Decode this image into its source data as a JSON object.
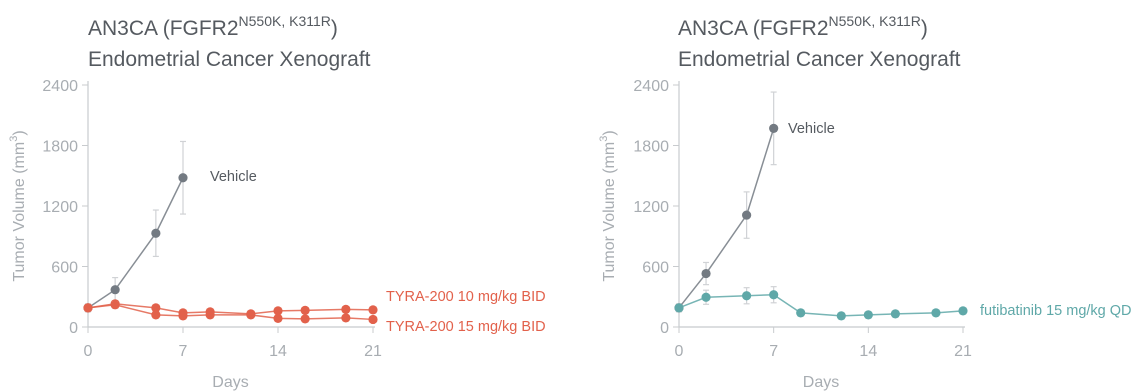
{
  "chart_data": [
    {
      "type": "line",
      "title": "AN3CA (FGFR2",
      "title_sup": "N550K, K311R",
      "title_close": ")",
      "subtitle": "Endometrial Cancer Xenograft",
      "ylabel": "Tumor Volume (mm",
      "ylabel_sup": "3",
      "ylabel_close": ")",
      "xlabel": "Days",
      "xlim": [
        0,
        21
      ],
      "ylim": [
        0,
        2400
      ],
      "xticks": [
        "0",
        "7",
        "14",
        "21"
      ],
      "yticks": [
        "0",
        "600",
        "1200",
        "1800",
        "2400"
      ],
      "grid": false,
      "series": [
        {
          "name": "Vehicle",
          "color": "#737a82",
          "x": [
            0,
            2,
            5,
            7
          ],
          "y": [
            190,
            370,
            930,
            1480
          ],
          "err": [
            40,
            120,
            230,
            360
          ]
        },
        {
          "name": "TYRA-200  10 mg/kg BID",
          "color": "#e2614b",
          "x": [
            0,
            2,
            5,
            7,
            9,
            12,
            14,
            16,
            19,
            21
          ],
          "y": [
            190,
            230,
            190,
            140,
            150,
            130,
            160,
            165,
            175,
            170
          ],
          "err": [
            20,
            30,
            25,
            20,
            20,
            20,
            25,
            25,
            25,
            25
          ]
        },
        {
          "name": "TYRA-200  15 mg/kg BID",
          "color": "#e2614b",
          "x": [
            0,
            2,
            5,
            7,
            9,
            12,
            14,
            16,
            19,
            21
          ],
          "y": [
            190,
            220,
            120,
            110,
            120,
            120,
            85,
            80,
            90,
            75
          ],
          "err": [
            20,
            30,
            20,
            15,
            15,
            15,
            15,
            15,
            15,
            15
          ]
        }
      ]
    },
    {
      "type": "line",
      "title": "AN3CA (FGFR2",
      "title_sup": "N550K, K311R",
      "title_close": ")",
      "subtitle": "Endometrial Cancer Xenograft",
      "ylabel": "Tumor Volume (mm",
      "ylabel_sup": "3",
      "ylabel_close": ")",
      "xlabel": "Days",
      "xlim": [
        0,
        21
      ],
      "ylim": [
        0,
        2400
      ],
      "xticks": [
        "0",
        "7",
        "14",
        "21"
      ],
      "yticks": [
        "0",
        "600",
        "1200",
        "1800",
        "2400"
      ],
      "grid": false,
      "series": [
        {
          "name": "Vehicle",
          "color": "#737a82",
          "x": [
            0,
            2,
            5,
            7
          ],
          "y": [
            190,
            530,
            1110,
            1970
          ],
          "err": [
            40,
            110,
            230,
            360
          ]
        },
        {
          "name": "futibatinib 15 mg/kg QD",
          "color": "#5fa8a8",
          "x": [
            0,
            2,
            5,
            7,
            9,
            12,
            14,
            16,
            19,
            21
          ],
          "y": [
            190,
            295,
            310,
            320,
            140,
            110,
            120,
            130,
            140,
            160
          ],
          "err": [
            20,
            70,
            80,
            80,
            20,
            15,
            15,
            15,
            20,
            20
          ]
        }
      ]
    }
  ]
}
